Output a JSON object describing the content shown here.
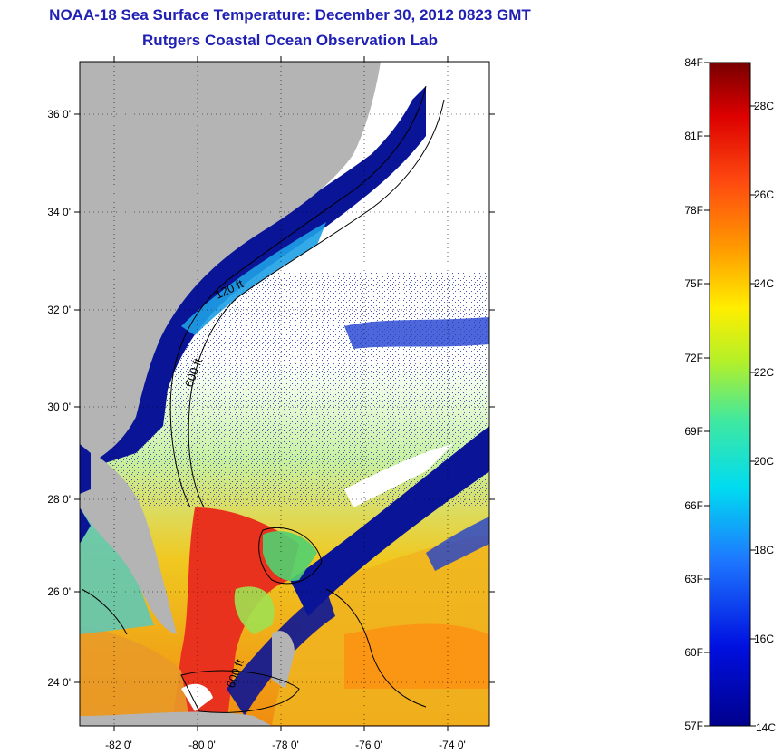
{
  "title": "NOAA-18 Sea Surface Temperature:  December 30, 2012 0823 GMT",
  "subtitle": "Rutgers Coastal Ocean Observation Lab",
  "map": {
    "lat_ticks": [
      "36 0'",
      "34 0'",
      "32 0'",
      "30 0'",
      "28 0'",
      "26 0'",
      "24 0'"
    ],
    "lon_ticks": [
      "-82 0'",
      "-80 0'",
      "-78 0'",
      "-76 0'",
      "-74 0'"
    ],
    "contour_labels": [
      "120 ft",
      "600 ft",
      "600 ft"
    ]
  },
  "colorbar": {
    "fahrenheit": [
      "84F",
      "81F",
      "78F",
      "75F",
      "72F",
      "69F",
      "66F",
      "63F",
      "60F",
      "57F"
    ],
    "celsius": [
      "28C",
      "26C",
      "24C",
      "22C",
      "20C",
      "18C",
      "16C",
      "14C"
    ]
  },
  "colors": {
    "title": "#1f1fb4",
    "land": "#b4b4b4",
    "cold": "#0a1496",
    "warm": "#e8321e"
  }
}
